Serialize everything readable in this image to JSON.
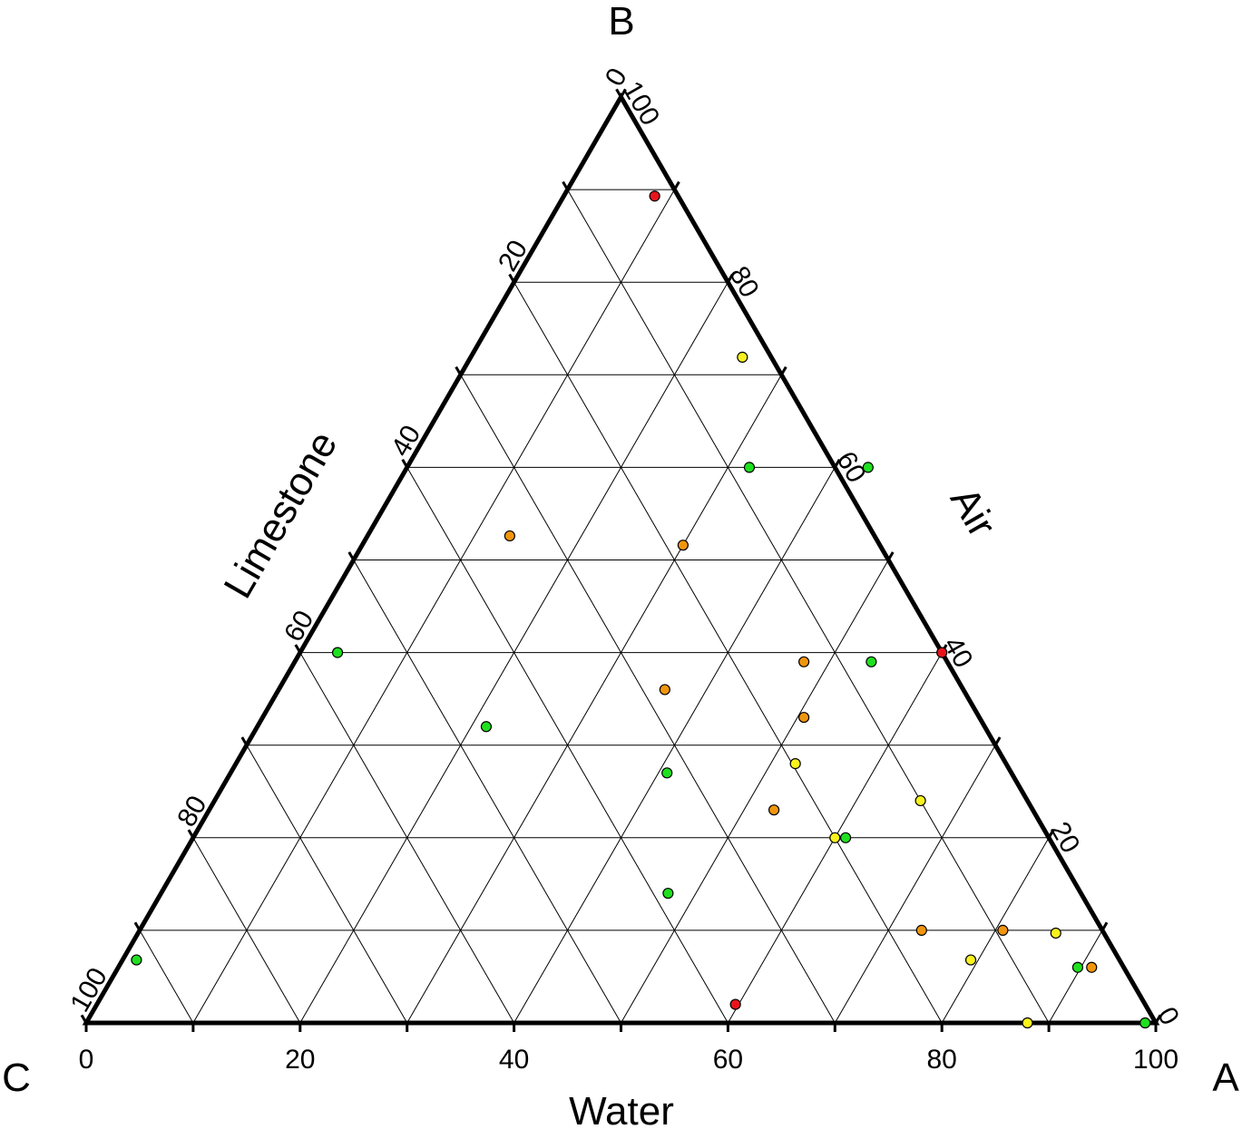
{
  "chart_data": {
    "type": "scatter",
    "subtype": "ternary",
    "vertices": {
      "a": "A",
      "b": "B",
      "c": "C"
    },
    "axes": {
      "a": {
        "title": "Water",
        "ticks": [
          "0",
          "20",
          "40",
          "60",
          "80",
          "100"
        ],
        "range": [
          0,
          100
        ]
      },
      "b": {
        "title": "Air",
        "ticks": [
          "0",
          "20",
          "40",
          "60",
          "80",
          "100"
        ],
        "range": [
          0,
          100
        ]
      },
      "c": {
        "title": "Limestone",
        "ticks": [
          "0",
          "20",
          "40",
          "60",
          "80",
          "100"
        ],
        "range": [
          0,
          100
        ]
      }
    },
    "grid": true,
    "grid_step": 10,
    "tick_step": 20,
    "marker_colors": {
      "red": "#e8141b",
      "orange": "#f0960e",
      "yellow": "#f8f21d",
      "green": "#1fe01f"
    },
    "points": [
      {
        "a": 8.5,
        "b": 89.3,
        "color": "red"
      },
      {
        "a": 25.4,
        "b": 71.9,
        "color": "yellow"
      },
      {
        "a": 32.0,
        "b": 60.0,
        "color": "green"
      },
      {
        "a": 43.1,
        "b": 60.0,
        "color": "green"
      },
      {
        "a": 13.3,
        "b": 52.6,
        "color": "orange"
      },
      {
        "a": 30.0,
        "b": 51.6,
        "color": "orange"
      },
      {
        "a": 60.0,
        "b": 40.0,
        "color": "red"
      },
      {
        "a": 3.5,
        "b": 40.0,
        "color": "green"
      },
      {
        "a": 47.6,
        "b": 39.0,
        "color": "orange"
      },
      {
        "a": 53.9,
        "b": 39.0,
        "color": "green"
      },
      {
        "a": 36.1,
        "b": 36.0,
        "color": "orange"
      },
      {
        "a": 50.6,
        "b": 33.0,
        "color": "orange"
      },
      {
        "a": 21.4,
        "b": 32.0,
        "color": "green"
      },
      {
        "a": 40.8,
        "b": 27.0,
        "color": "green"
      },
      {
        "a": 52.3,
        "b": 28.0,
        "color": "yellow"
      },
      {
        "a": 66.0,
        "b": 24.0,
        "color": "yellow"
      },
      {
        "a": 52.8,
        "b": 23.0,
        "color": "orange"
      },
      {
        "a": 60.0,
        "b": 20.0,
        "color": "yellow"
      },
      {
        "a": 61.0,
        "b": 20.0,
        "color": "green"
      },
      {
        "a": 47.4,
        "b": 14.0,
        "color": "green"
      },
      {
        "a": 80.7,
        "b": 10.0,
        "color": "orange"
      },
      {
        "a": 73.1,
        "b": 10.0,
        "color": "orange"
      },
      {
        "a": 85.8,
        "b": 9.7,
        "color": "yellow"
      },
      {
        "a": 79.3,
        "b": 6.8,
        "color": "yellow"
      },
      {
        "a": 89.7,
        "b": 6.0,
        "color": "green"
      },
      {
        "a": 91.0,
        "b": 6.0,
        "color": "orange"
      },
      {
        "a": 1.3,
        "b": 6.8,
        "color": "green"
      },
      {
        "a": 59.7,
        "b": 2.0,
        "color": "red"
      },
      {
        "a": 88.0,
        "b": 0.0,
        "color": "yellow"
      },
      {
        "a": 99.0,
        "b": 0.0,
        "color": "green"
      }
    ]
  }
}
